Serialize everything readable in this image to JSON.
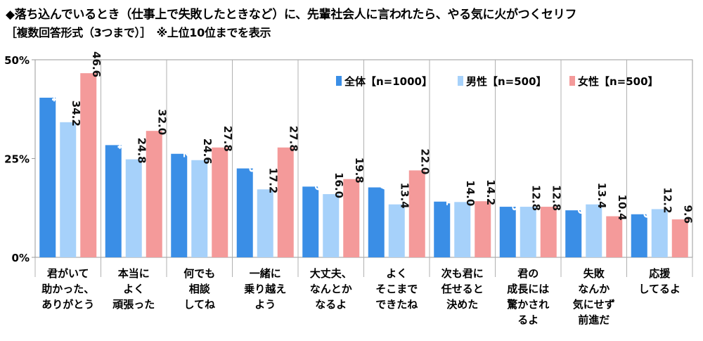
{
  "chart_data": {
    "type": "bar",
    "title": "◆落ち込んでいるとき（仕事上で失敗したときなど）に、先輩社会人に言われたら、やる気に火がつくセリフ",
    "subtitle": "［複数回答形式（3つまで）］　※上位10位までを表示",
    "ylim": [
      0,
      50
    ],
    "yticks": [
      "0%",
      "25%",
      "50%"
    ],
    "ytick_values": [
      0,
      25,
      50
    ],
    "legend_position": "top-right",
    "categories": [
      [
        "君がいて",
        "助かった、",
        "ありがとう"
      ],
      [
        "本当に",
        "よく",
        "頑張った"
      ],
      [
        "何でも",
        "相談",
        "してね"
      ],
      [
        "一緒に",
        "乗り越え",
        "よう"
      ],
      [
        "大丈夫、",
        "なんとか",
        "なるよ"
      ],
      [
        "よく",
        "そこまで",
        "できたね"
      ],
      [
        "次も君に",
        "任せると",
        "決めた"
      ],
      [
        "君の",
        "成長には",
        "驚かされ",
        "るよ"
      ],
      [
        "失敗",
        "なんか",
        "気にせず",
        "前進だ"
      ],
      [
        "応援",
        "してるよ"
      ]
    ],
    "series": [
      {
        "name": "全体【n=1000】",
        "color": "#3a8ee6",
        "label_color": "#ffffff",
        "values": [
          40.4,
          28.4,
          26.2,
          22.5,
          17.9,
          17.7,
          14.1,
          12.8,
          11.9,
          10.9
        ]
      },
      {
        "name": "男性【n=500】",
        "color": "#a6d1fa",
        "label_color": "#111111",
        "values": [
          34.2,
          24.8,
          24.6,
          17.2,
          16.0,
          13.4,
          14.0,
          12.8,
          13.4,
          12.2
        ]
      },
      {
        "name": "女性【n=500】",
        "color": "#f49a9a",
        "label_color": "#111111",
        "values": [
          46.6,
          32.0,
          27.8,
          27.8,
          19.8,
          22.0,
          14.2,
          12.8,
          10.4,
          9.6
        ]
      }
    ]
  }
}
